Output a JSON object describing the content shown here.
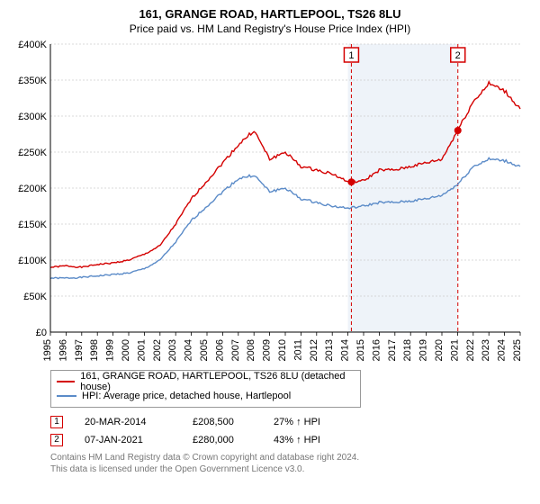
{
  "title": "161, GRANGE ROAD, HARTLEPOOL, TS26 8LU",
  "subtitle": "Price paid vs. HM Land Registry's House Price Index (HPI)",
  "chart": {
    "type": "line",
    "background_band": {
      "x_start": 2014,
      "x_end": 2021,
      "color": "#eef3f9"
    },
    "axes": {
      "x": {
        "min": 1995,
        "max": 2025,
        "tick_step": 1,
        "label_fontsize": 11
      },
      "y": {
        "min": 0,
        "max": 400000,
        "tick_step": 50000,
        "tick_prefix": "£",
        "suffix_k": true,
        "label_fontsize": 11
      }
    },
    "grid_color": "#cccccc",
    "axis_color": "#000000",
    "series": [
      {
        "name": "red",
        "label": "161, GRANGE ROAD, HARTLEPOOL, TS26 8LU (detached house)",
        "color": "#d40000",
        "line_width": 1.4,
        "points": [
          [
            1995,
            90000
          ],
          [
            1996,
            92000
          ],
          [
            1997,
            90000
          ],
          [
            1998,
            94000
          ],
          [
            1999,
            96000
          ],
          [
            2000,
            100000
          ],
          [
            2001,
            108000
          ],
          [
            2002,
            120000
          ],
          [
            2003,
            150000
          ],
          [
            2004,
            185000
          ],
          [
            2005,
            210000
          ],
          [
            2006,
            235000
          ],
          [
            2007,
            260000
          ],
          [
            2008,
            280000
          ],
          [
            2009,
            240000
          ],
          [
            2010,
            250000
          ],
          [
            2011,
            230000
          ],
          [
            2012,
            225000
          ],
          [
            2013,
            220000
          ],
          [
            2014,
            208500
          ],
          [
            2015,
            210000
          ],
          [
            2016,
            225000
          ],
          [
            2017,
            225000
          ],
          [
            2018,
            230000
          ],
          [
            2019,
            235000
          ],
          [
            2020,
            240000
          ],
          [
            2021,
            280000
          ],
          [
            2022,
            320000
          ],
          [
            2023,
            345000
          ],
          [
            2024,
            335000
          ],
          [
            2025,
            310000
          ]
        ]
      },
      {
        "name": "blue",
        "label": "HPI: Average price, detached house, Hartlepool",
        "color": "#5b8bc8",
        "line_width": 1.4,
        "points": [
          [
            1995,
            75000
          ],
          [
            1996,
            75000
          ],
          [
            1997,
            76000
          ],
          [
            1998,
            78000
          ],
          [
            1999,
            80000
          ],
          [
            2000,
            82000
          ],
          [
            2001,
            88000
          ],
          [
            2002,
            100000
          ],
          [
            2003,
            125000
          ],
          [
            2004,
            155000
          ],
          [
            2005,
            175000
          ],
          [
            2006,
            195000
          ],
          [
            2007,
            213000
          ],
          [
            2008,
            218000
          ],
          [
            2009,
            195000
          ],
          [
            2010,
            200000
          ],
          [
            2011,
            185000
          ],
          [
            2012,
            180000
          ],
          [
            2013,
            175000
          ],
          [
            2014,
            172000
          ],
          [
            2015,
            175000
          ],
          [
            2016,
            180000
          ],
          [
            2017,
            180000
          ],
          [
            2018,
            182000
          ],
          [
            2019,
            185000
          ],
          [
            2020,
            190000
          ],
          [
            2021,
            205000
          ],
          [
            2022,
            230000
          ],
          [
            2023,
            240000
          ],
          [
            2024,
            238000
          ],
          [
            2025,
            230000
          ]
        ]
      }
    ],
    "sale_markers": [
      {
        "idx": "1",
        "x": 2014.22,
        "y": 208500,
        "border_color": "#d40000"
      },
      {
        "idx": "2",
        "x": 2021.02,
        "y": 280000,
        "border_color": "#d40000"
      }
    ],
    "point_dot_color": "#d40000"
  },
  "legend": {
    "items": [
      {
        "color": "#d40000",
        "label": "161, GRANGE ROAD, HARTLEPOOL, TS26 8LU (detached house)"
      },
      {
        "color": "#5b8bc8",
        "label": "HPI: Average price, detached house, Hartlepool"
      }
    ]
  },
  "sales": [
    {
      "idx": "1",
      "date": "20-MAR-2014",
      "price": "£208,500",
      "pct": "27% ↑ HPI",
      "border_color": "#d40000"
    },
    {
      "idx": "2",
      "date": "07-JAN-2021",
      "price": "£280,000",
      "pct": "43% ↑ HPI",
      "border_color": "#d40000"
    }
  ],
  "footer_line1": "Contains HM Land Registry data © Crown copyright and database right 2024.",
  "footer_line2": "This data is licensed under the Open Government Licence v3.0."
}
